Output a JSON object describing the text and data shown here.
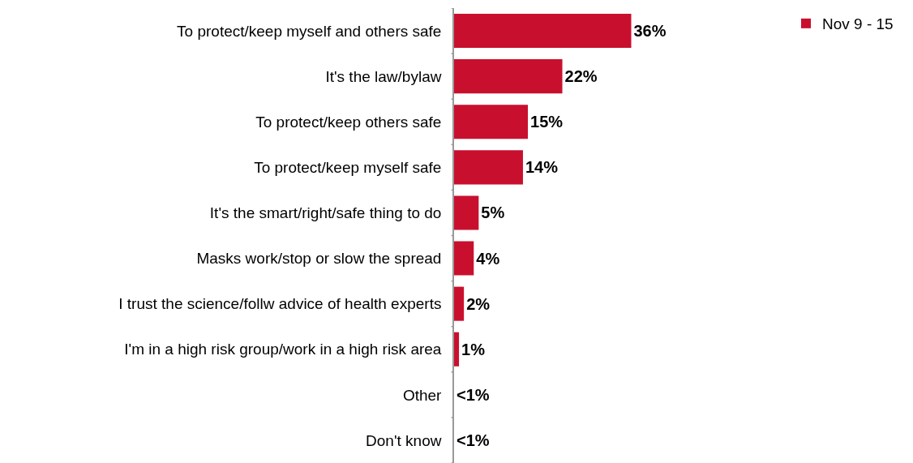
{
  "chart_data": {
    "type": "bar",
    "orientation": "horizontal",
    "categories": [
      "To protect/keep myself and others safe",
      "It's the law/bylaw",
      "To protect/keep others safe",
      "To protect/keep myself safe",
      "It's the smart/right/safe thing to do",
      "Masks work/stop or slow the spread",
      "I trust the science/follw advice of health experts",
      "I'm in a high risk group/work in a high risk area",
      "Other",
      "Don't know"
    ],
    "series": [
      {
        "name": "Nov 9 - 15",
        "color": "#c8102e",
        "values": [
          36,
          22,
          15,
          14,
          5,
          4,
          2,
          1,
          0,
          0
        ],
        "value_labels": [
          "36%",
          "22%",
          "15%",
          "14%",
          "5%",
          "4%",
          "2%",
          "1%",
          "<1%",
          "<1%"
        ]
      }
    ],
    "legend": "top right"
  }
}
